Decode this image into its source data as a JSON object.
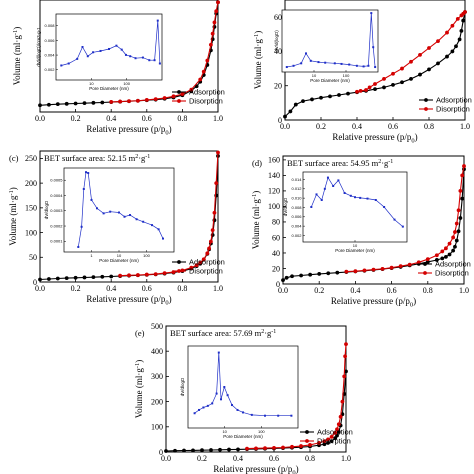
{
  "colors": {
    "adsorption": "#000000",
    "desorption": "#d40000",
    "inset": "#1f2fc8"
  },
  "chart_data": [
    {
      "id": "a",
      "type": "line",
      "panel_label": "",
      "annotation": "",
      "xlabel": "Relative pressure (p/p0)",
      "ylabel": "Volume (ml·g-1)",
      "x_ticks": [
        "0.0",
        "0.2",
        "0.4",
        "0.6",
        "0.8",
        "1.0"
      ],
      "y_ticks": [],
      "xlim": [
        0,
        1
      ],
      "ylim": [
        0,
        1
      ],
      "legend": {
        "position": "bottom-right",
        "entries": [
          "Adsorption",
          "Disorption"
        ]
      },
      "series": [
        {
          "name": "Adsorption",
          "x": [
            0.0,
            0.05,
            0.1,
            0.15,
            0.2,
            0.25,
            0.3,
            0.35,
            0.4,
            0.45,
            0.5,
            0.55,
            0.6,
            0.65,
            0.7,
            0.75,
            0.8,
            0.85,
            0.88,
            0.9,
            0.92,
            0.94,
            0.96,
            0.97,
            0.98,
            0.99,
            1.0
          ],
          "y": [
            0.06,
            0.065,
            0.07,
            0.073,
            0.076,
            0.079,
            0.082,
            0.085,
            0.088,
            0.092,
            0.096,
            0.1,
            0.105,
            0.11,
            0.118,
            0.13,
            0.15,
            0.19,
            0.23,
            0.27,
            0.33,
            0.42,
            0.55,
            0.65,
            0.76,
            0.88,
            0.98
          ]
        },
        {
          "name": "Disorption",
          "x": [
            1.0,
            0.99,
            0.98,
            0.97,
            0.96,
            0.94,
            0.92,
            0.9,
            0.85,
            0.8,
            0.75,
            0.7,
            0.65,
            0.6,
            0.55,
            0.5,
            0.45,
            0.4
          ],
          "y": [
            0.98,
            0.9,
            0.8,
            0.7,
            0.6,
            0.46,
            0.36,
            0.29,
            0.2,
            0.16,
            0.14,
            0.125,
            0.115,
            0.108,
            0.1,
            0.097,
            0.093,
            0.09
          ]
        }
      ],
      "inset": {
        "type": "line",
        "xlabel": "Pore Diameter (nm)",
        "ylabel": "dV/d(logD)/cm3·g-1",
        "x_ticks": [
          "10",
          "100"
        ],
        "y_ticks": [
          "0.008",
          "0.006",
          "0.004",
          "0.002"
        ],
        "xlim": [
          0,
          1
        ],
        "ylim": [
          0,
          1
        ],
        "x": [
          0.05,
          0.12,
          0.2,
          0.25,
          0.3,
          0.35,
          0.42,
          0.5,
          0.57,
          0.62,
          0.66,
          0.7,
          0.75,
          0.82,
          0.88,
          0.93,
          0.96,
          0.98
        ],
        "y": [
          0.22,
          0.25,
          0.32,
          0.5,
          0.36,
          0.42,
          0.44,
          0.47,
          0.52,
          0.46,
          0.38,
          0.36,
          0.33,
          0.34,
          0.3,
          0.3,
          0.9,
          0.25
        ]
      }
    },
    {
      "id": "b",
      "type": "line",
      "panel_label": "",
      "annotation": "",
      "xlabel": "Relative pressure (p/p0)",
      "ylabel": "Volume (ml·g-1)",
      "x_ticks": [
        "0.0",
        "0.2",
        "0.4",
        "0.6",
        "0.8",
        "1.0"
      ],
      "y_ticks": [
        "60",
        "40",
        "20",
        "0"
      ],
      "xlim": [
        0,
        1
      ],
      "ylim": [
        0,
        70
      ],
      "legend": {
        "position": "bottom-right",
        "entries": [
          "Adsorption",
          "Disorption"
        ]
      },
      "series": [
        {
          "name": "Adsorption",
          "x": [
            0.0,
            0.03,
            0.06,
            0.1,
            0.15,
            0.2,
            0.25,
            0.3,
            0.35,
            0.4,
            0.45,
            0.5,
            0.55,
            0.6,
            0.65,
            0.7,
            0.75,
            0.8,
            0.85,
            0.9,
            0.93,
            0.95,
            0.97,
            0.98,
            0.99,
            1.0
          ],
          "y": [
            2,
            5,
            9,
            11,
            12,
            13,
            13.8,
            14.6,
            15.4,
            16.2,
            17,
            18,
            19,
            20.5,
            22,
            24,
            26.5,
            29.5,
            33,
            37,
            40,
            43,
            47,
            52,
            58,
            63
          ]
        },
        {
          "name": "Disorption",
          "x": [
            1.0,
            0.99,
            0.98,
            0.96,
            0.93,
            0.9,
            0.85,
            0.8,
            0.75,
            0.7,
            0.65,
            0.6,
            0.55,
            0.5,
            0.47,
            0.45,
            0.42,
            0.4
          ],
          "y": [
            63,
            62,
            61,
            59,
            55,
            51,
            46,
            42,
            38,
            34,
            30,
            27,
            24,
            21,
            19,
            17.5,
            17,
            16.5
          ]
        }
      ],
      "inset": {
        "type": "line",
        "xlabel": "Pore Diameter (nm)",
        "ylabel": "dV/d(logD)",
        "x_ticks": [
          "10",
          "100"
        ],
        "y_ticks": [],
        "xlim": [
          0,
          1
        ],
        "ylim": [
          0,
          1
        ],
        "x": [
          0.05,
          0.12,
          0.2,
          0.25,
          0.3,
          0.38,
          0.45,
          0.55,
          0.62,
          0.7,
          0.78,
          0.85,
          0.9,
          0.93,
          0.95,
          0.97
        ],
        "y": [
          0.08,
          0.1,
          0.14,
          0.3,
          0.18,
          0.16,
          0.15,
          0.14,
          0.13,
          0.12,
          0.1,
          0.09,
          0.1,
          0.95,
          0.4,
          0.08
        ]
      }
    },
    {
      "id": "c",
      "type": "line",
      "panel_label": "(c)",
      "annotation": "BET surface area: 52.15 m2·g-1",
      "xlabel": "Relative pressure (p/p0)",
      "ylabel": "Volume (ml·g-1)",
      "x_ticks": [
        "0.0",
        "0.2",
        "0.4",
        "0.6",
        "0.8",
        "1.0"
      ],
      "y_ticks": [
        "0",
        "50",
        "100",
        "150",
        "200",
        "250"
      ],
      "xlim": [
        0,
        1
      ],
      "ylim": [
        0,
        265
      ],
      "legend": {
        "position": "bottom-right",
        "entries": [
          "Adsorption",
          "Disorption"
        ]
      },
      "series": [
        {
          "name": "Adsorption",
          "x": [
            0.0,
            0.05,
            0.1,
            0.15,
            0.2,
            0.25,
            0.3,
            0.35,
            0.4,
            0.45,
            0.5,
            0.55,
            0.6,
            0.65,
            0.7,
            0.75,
            0.8,
            0.85,
            0.88,
            0.9,
            0.92,
            0.94,
            0.95,
            0.96,
            0.97,
            0.98,
            0.99,
            1.0
          ],
          "y": [
            5,
            6,
            7,
            7.8,
            8.5,
            9.2,
            9.8,
            10.5,
            11.2,
            12,
            12.8,
            13.6,
            14.5,
            15.5,
            17,
            19,
            22,
            27,
            32,
            37,
            45,
            57,
            66,
            78,
            95,
            125,
            175,
            255
          ]
        },
        {
          "name": "Disorption",
          "x": [
            1.0,
            0.99,
            0.98,
            0.97,
            0.96,
            0.95,
            0.94,
            0.92,
            0.9,
            0.88,
            0.85,
            0.8,
            0.75,
            0.7,
            0.65,
            0.6,
            0.55,
            0.5,
            0.45
          ],
          "y": [
            262,
            200,
            140,
            105,
            82,
            68,
            58,
            46,
            39,
            34,
            29,
            23.5,
            20,
            18,
            16,
            15,
            14,
            13.5,
            12.8
          ]
        }
      ],
      "inset": {
        "type": "line",
        "xlabel": "Pore Diameter (nm)",
        "ylabel": "dV/dlogD",
        "x_ticks": [
          "1",
          "10",
          "100"
        ],
        "y_ticks": [
          "0.0005",
          "0.0004",
          "0.0003",
          "0.0002",
          "0.0001"
        ],
        "xlim": [
          0,
          1
        ],
        "ylim": [
          0,
          1
        ],
        "x": [
          0.13,
          0.16,
          0.18,
          0.2,
          0.22,
          0.25,
          0.3,
          0.36,
          0.42,
          0.5,
          0.55,
          0.6,
          0.66,
          0.72,
          0.8,
          0.86,
          0.9
        ],
        "y": [
          0.06,
          0.3,
          0.75,
          0.95,
          0.94,
          0.62,
          0.52,
          0.46,
          0.48,
          0.47,
          0.42,
          0.44,
          0.39,
          0.36,
          0.32,
          0.27,
          0.16
        ]
      }
    },
    {
      "id": "d",
      "type": "line",
      "panel_label": "(d)",
      "annotation": "BET surface area: 54.95 m2·g-1",
      "xlabel": "Relative pressure (p/p0)",
      "ylabel": "Volume (ml·g-1)",
      "x_ticks": [
        "0.0",
        "0.2",
        "0.4",
        "0.6",
        "0.8",
        "1.0"
      ],
      "y_ticks": [
        "0",
        "20",
        "40",
        "60",
        "80",
        "100",
        "120",
        "140",
        "160"
      ],
      "xlim": [
        0,
        1
      ],
      "ylim": [
        0,
        165
      ],
      "legend": {
        "position": "bottom-right",
        "entries": [
          "Adsorption",
          "Disorption"
        ]
      },
      "series": [
        {
          "name": "Adsorption",
          "x": [
            0.0,
            0.02,
            0.05,
            0.1,
            0.15,
            0.2,
            0.25,
            0.3,
            0.35,
            0.4,
            0.45,
            0.5,
            0.55,
            0.6,
            0.65,
            0.7,
            0.75,
            0.8,
            0.85,
            0.88,
            0.9,
            0.92,
            0.94,
            0.95,
            0.96,
            0.97,
            0.98,
            0.99,
            1.0
          ],
          "y": [
            5,
            8,
            10,
            11,
            12,
            13,
            13.8,
            14.6,
            15.4,
            16.2,
            17,
            18,
            19.2,
            20.5,
            22,
            24,
            26,
            28.5,
            31,
            33,
            35,
            38,
            43,
            48,
            56,
            68,
            85,
            110,
            148
          ]
        },
        {
          "name": "Disorption",
          "x": [
            1.0,
            0.99,
            0.98,
            0.97,
            0.96,
            0.95,
            0.94,
            0.92,
            0.9,
            0.88,
            0.85,
            0.8,
            0.75,
            0.7,
            0.65,
            0.6,
            0.55,
            0.5,
            0.45,
            0.4,
            0.35
          ],
          "y": [
            152,
            140,
            120,
            95,
            78,
            67,
            60,
            52,
            46,
            42,
            37,
            32,
            28,
            25,
            23,
            21,
            19.5,
            18.5,
            17.5,
            16.5,
            16
          ]
        }
      ],
      "inset": {
        "type": "line",
        "xlabel": "Pore Diameter (nm)",
        "ylabel": "dV/dlogD",
        "x_ticks": [
          "10"
        ],
        "y_ticks": [
          "0.014",
          "0.012",
          "0.010",
          "0.008",
          "0.006",
          "0.004",
          "0.002"
        ],
        "xlim": [
          0,
          1
        ],
        "ylim": [
          0,
          1
        ],
        "x": [
          0.08,
          0.13,
          0.18,
          0.21,
          0.24,
          0.29,
          0.34,
          0.4,
          0.46,
          0.5,
          0.55,
          0.62,
          0.7,
          0.78,
          0.88,
          0.96
        ],
        "y": [
          0.5,
          0.68,
          0.6,
          0.76,
          0.92,
          0.8,
          0.88,
          0.7,
          0.66,
          0.64,
          0.63,
          0.62,
          0.6,
          0.5,
          0.32,
          0.22
        ]
      }
    },
    {
      "id": "e",
      "type": "line",
      "panel_label": "(e)",
      "annotation": "BET surface area: 57.69 m2·g-1",
      "xlabel": "Relative pressure (p/p0)",
      "ylabel": "Volume (ml·g-1)",
      "x_ticks": [
        "0.0",
        "0.2",
        "0.4",
        "0.6",
        "0.8",
        "1.0"
      ],
      "y_ticks": [
        "0",
        "100",
        "200",
        "300",
        "400",
        "500"
      ],
      "xlim": [
        0,
        1
      ],
      "ylim": [
        0,
        500
      ],
      "legend": {
        "position": "bottom-right",
        "entries": [
          "Adsorption",
          "Disorption"
        ]
      },
      "series": [
        {
          "name": "Adsorption",
          "x": [
            0.0,
            0.05,
            0.1,
            0.15,
            0.2,
            0.25,
            0.3,
            0.35,
            0.4,
            0.45,
            0.5,
            0.55,
            0.6,
            0.65,
            0.7,
            0.75,
            0.8,
            0.85,
            0.88,
            0.9,
            0.92,
            0.94,
            0.95,
            0.96,
            0.97,
            0.98,
            0.99,
            1.0
          ],
          "y": [
            4,
            5,
            5.8,
            6.5,
            7.2,
            8,
            8.8,
            9.6,
            10.4,
            11.2,
            12,
            13,
            14,
            15.5,
            17,
            19,
            22,
            27,
            31,
            36,
            43,
            55,
            65,
            80,
            105,
            150,
            230,
            320
          ]
        },
        {
          "name": "Disorption",
          "x": [
            1.0,
            0.995,
            0.99,
            0.98,
            0.97,
            0.96,
            0.95,
            0.94,
            0.92,
            0.9,
            0.88,
            0.85,
            0.8,
            0.75,
            0.7,
            0.65,
            0.6,
            0.55,
            0.5,
            0.45
          ],
          "y": [
            428,
            380,
            300,
            200,
            140,
            110,
            90,
            76,
            60,
            50,
            43,
            36,
            28,
            23.5,
            20.5,
            18,
            16.5,
            15.5,
            14.5,
            13.5
          ]
        }
      ],
      "inset": {
        "type": "line",
        "xlabel": "Pore Diameter (nm)",
        "ylabel": "dV/dlogD",
        "x_ticks": [
          "10",
          "100"
        ],
        "y_ticks": [],
        "xlim": [
          0,
          1
        ],
        "ylim": [
          0,
          1
        ],
        "x": [
          0.06,
          0.1,
          0.14,
          0.18,
          0.22,
          0.26,
          0.28,
          0.3,
          0.33,
          0.36,
          0.4,
          0.45,
          0.5,
          0.58,
          0.7,
          0.82,
          0.94
        ],
        "y": [
          0.18,
          0.22,
          0.25,
          0.27,
          0.3,
          0.42,
          0.92,
          0.35,
          0.5,
          0.4,
          0.28,
          0.22,
          0.19,
          0.16,
          0.15,
          0.15,
          0.15
        ]
      }
    }
  ]
}
